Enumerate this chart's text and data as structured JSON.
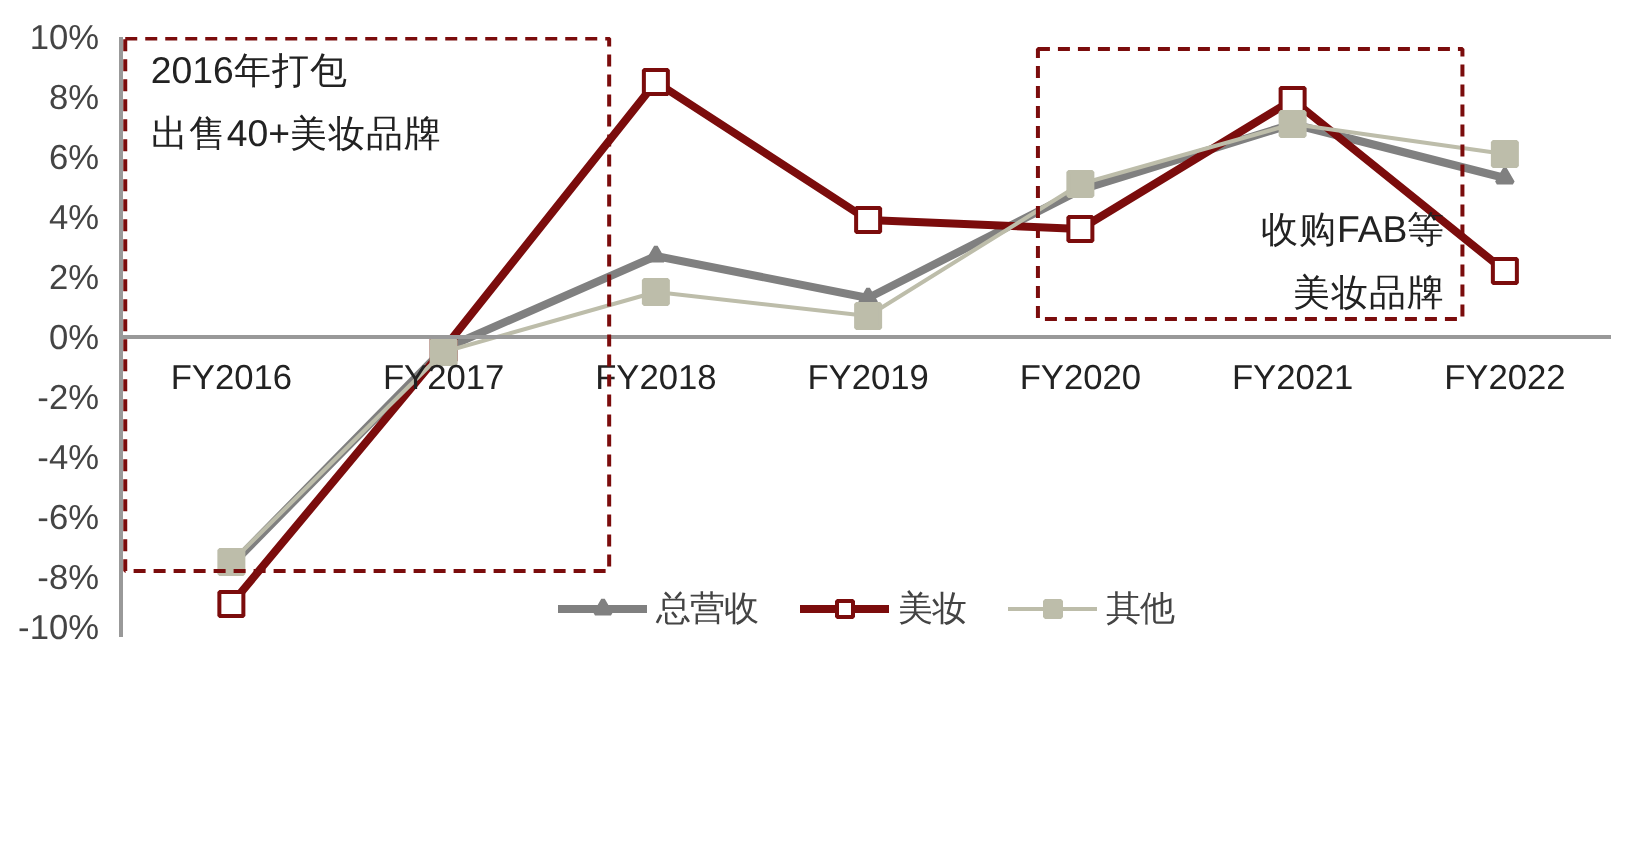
{
  "chart_data": {
    "type": "line",
    "categories": [
      "FY2016",
      "FY2017",
      "FY2018",
      "FY2019",
      "FY2020",
      "FY2021",
      "FY2022"
    ],
    "series": [
      {
        "name": "总营收",
        "color": "#808080",
        "marker": "triangle",
        "values": [
          -7.6,
          -0.4,
          2.7,
          1.3,
          4.9,
          7.1,
          5.3
        ]
      },
      {
        "name": "美妆",
        "color": "#7b0c0c",
        "marker": "square",
        "values": [
          -8.9,
          -0.4,
          8.5,
          3.9,
          3.6,
          7.9,
          2.2
        ]
      },
      {
        "name": "其他",
        "color": "#bdbdaa",
        "marker": "square",
        "values": [
          -7.5,
          -0.5,
          1.5,
          0.7,
          5.1,
          7.1,
          6.1
        ]
      }
    ],
    "ylim": [
      -10,
      10
    ],
    "yticks": [
      {
        "value": -10,
        "label": "-10%"
      },
      {
        "value": -8,
        "label": "-8%"
      },
      {
        "value": -6,
        "label": "-6%"
      },
      {
        "value": -4,
        "label": "-4%"
      },
      {
        "value": -2,
        "label": "-2%"
      },
      {
        "value": 0,
        "label": "0%"
      },
      {
        "value": 2,
        "label": "2%"
      },
      {
        "value": 4,
        "label": "4%"
      },
      {
        "value": 6,
        "label": "6%"
      },
      {
        "value": 8,
        "label": "8%"
      },
      {
        "value": 10,
        "label": "10%"
      }
    ],
    "annotations": [
      "2016年打包",
      "出售40+美妆品牌",
      "收购FAB等",
      "美妆品牌"
    ],
    "grid": false,
    "legend": "bottom",
    "line_style": "solid"
  }
}
